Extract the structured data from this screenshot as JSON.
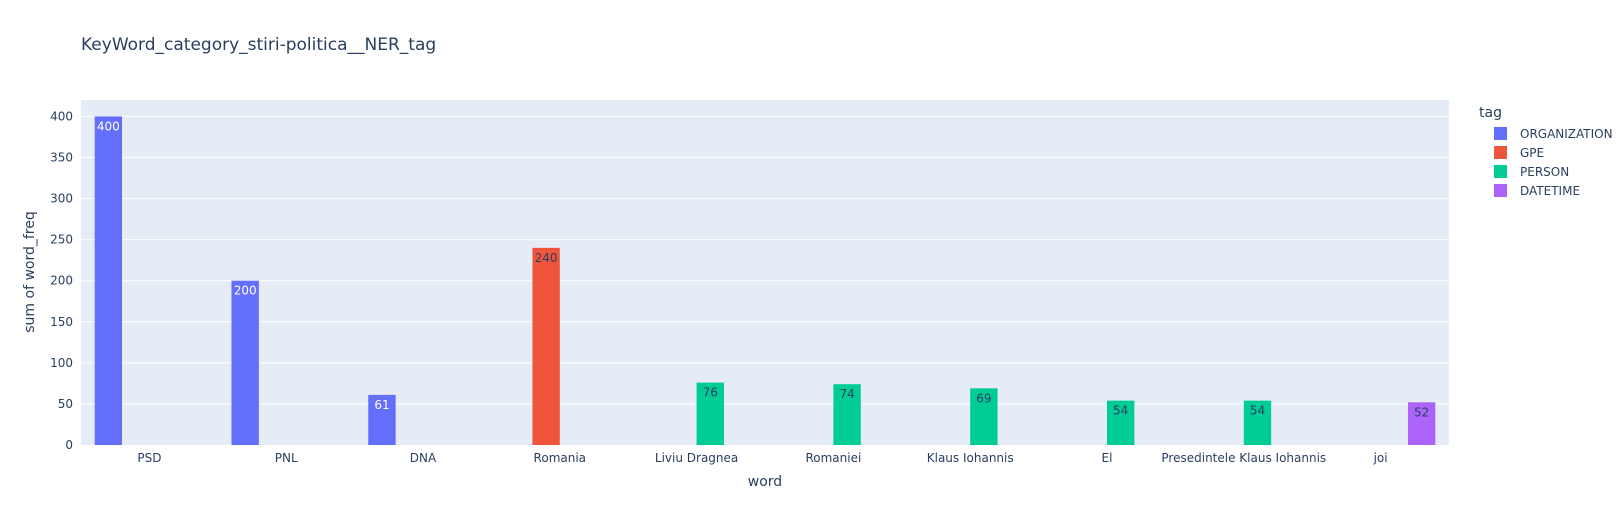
{
  "chart_data": {
    "type": "bar",
    "title": "KeyWord_category_stiri-politica__NER_tag",
    "xlabel": "word",
    "ylabel": "sum of word_freq",
    "ylim": [
      0,
      420
    ],
    "yticks": [
      0,
      50,
      100,
      150,
      200,
      250,
      300,
      350,
      400
    ],
    "grid": true,
    "barmode": "group",
    "categories": [
      "PSD",
      "PNL",
      "DNA",
      "Romania",
      "Liviu Dragnea",
      "Romaniei",
      "Klaus Iohannis",
      "El",
      "Presedintele Klaus Iohannis",
      "joi"
    ],
    "legend": {
      "title": "tag",
      "placement": "right"
    },
    "series": [
      {
        "name": "ORGANIZATION",
        "color": "#636efa",
        "label_color": "#ffffff",
        "values": [
          400,
          200,
          61,
          null,
          null,
          null,
          null,
          null,
          null,
          null
        ]
      },
      {
        "name": "GPE",
        "color": "#ef553b",
        "label_color": "#2a3f5f",
        "values": [
          null,
          null,
          null,
          240,
          null,
          null,
          null,
          null,
          null,
          null
        ]
      },
      {
        "name": "PERSON",
        "color": "#00cc96",
        "label_color": "#2a3f5f",
        "values": [
          null,
          null,
          null,
          null,
          76,
          74,
          69,
          54,
          54,
          null
        ]
      },
      {
        "name": "DATETIME",
        "color": "#ab63fa",
        "label_color": "#2a3f5f",
        "values": [
          null,
          null,
          null,
          null,
          null,
          null,
          null,
          null,
          null,
          52
        ]
      }
    ],
    "colors": {
      "plot_bg": "#e5ecf6",
      "grid": "#ffffff",
      "text": "#2a3f5f"
    }
  }
}
